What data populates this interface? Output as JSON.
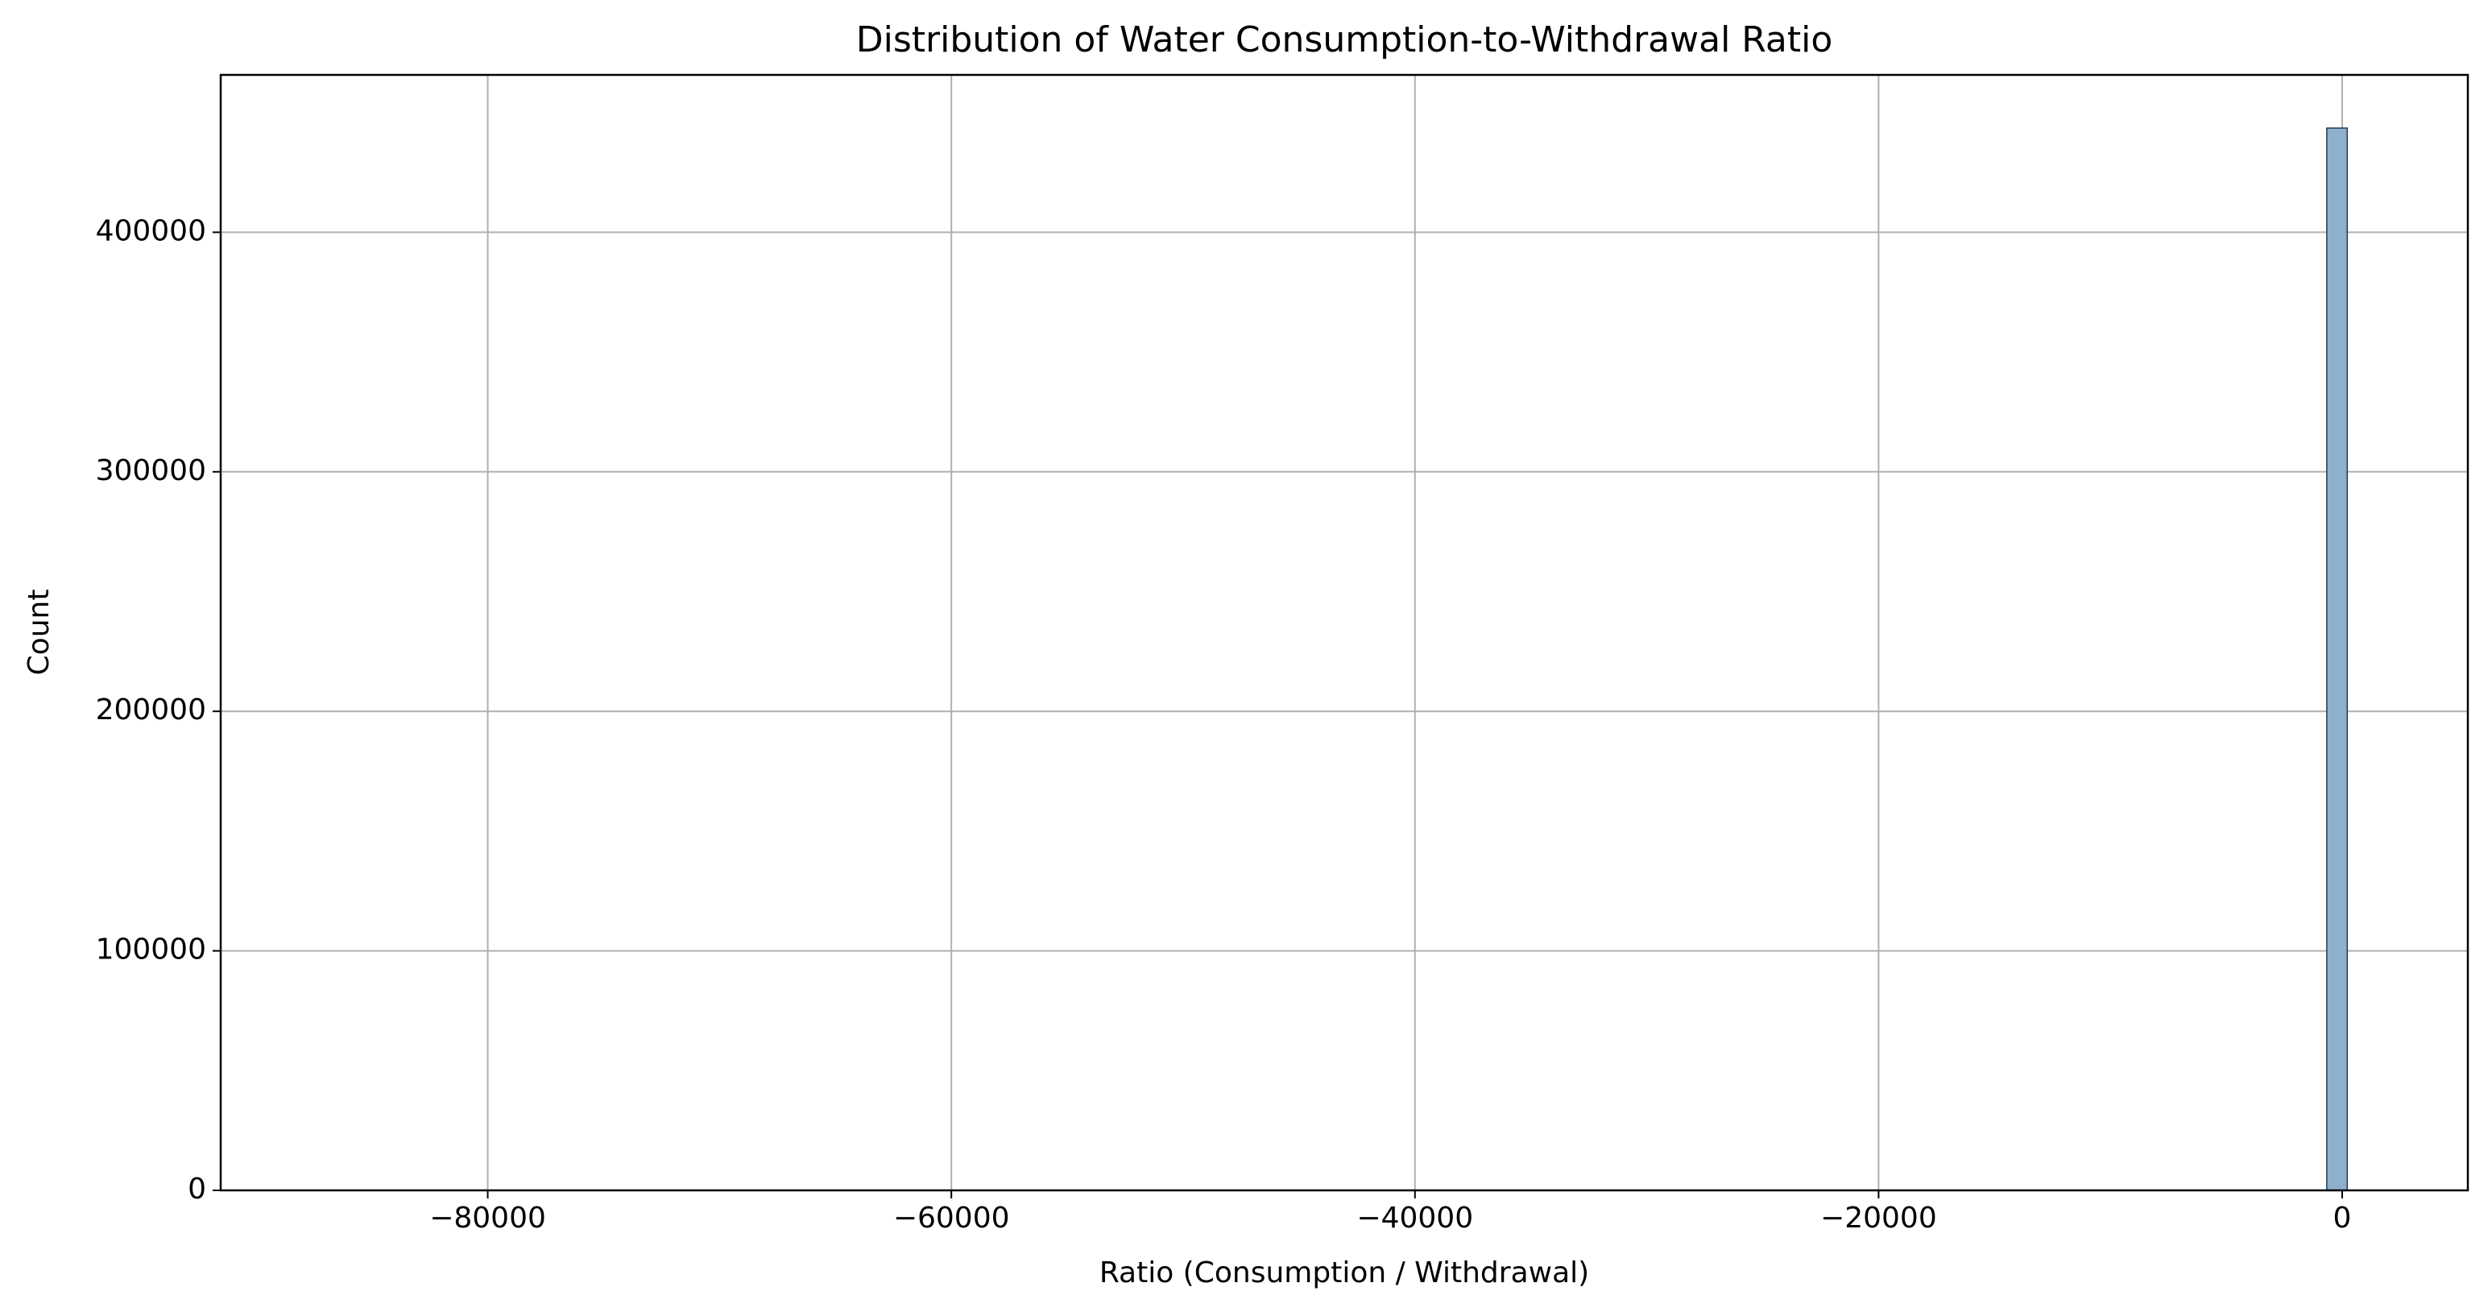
{
  "chart_data": {
    "type": "histogram",
    "title": "Distribution of Water Consumption-to-Withdrawal Ratio",
    "x_label": "Ratio (Consumption / Withdrawal)",
    "y_label": "Count",
    "bins": [
      -87130,
      -86247.7,
      -85365.4,
      -84483.1,
      -83600.8,
      -82718.5,
      -81836.2,
      -80953.9,
      -80071.6,
      -79189.3,
      -78307,
      -77424.7,
      -76542.4,
      -75660.1,
      -74777.8,
      -73895.5,
      -73013.2,
      -72130.9,
      -71248.6,
      -70366.3,
      -69484,
      -68601.7,
      -67719.4,
      -66837.1,
      -65954.8,
      -65072.5,
      -64190.2,
      -63307.9,
      -62425.6,
      -61543.3,
      -60661,
      -59778.7,
      -58896.4,
      -58014.1,
      -57131.8,
      -56249.5,
      -55367.2,
      -54484.9,
      -53602.6,
      -52720.3,
      -51838,
      -50955.7,
      -50073.4,
      -49191.1,
      -48308.8,
      -47426.5,
      -46544.2,
      -45661.9,
      -44779.6,
      -43897.3,
      -43015,
      -42132.7,
      -41250.4,
      -40368.1,
      -39485.8,
      -38603.5,
      -37721.2,
      -36838.9,
      -35956.6,
      -35074.3,
      -34192,
      -33309.7,
      -32427.4,
      -31545.1,
      -30662.8,
      -29780.5,
      -28898.2,
      -28015.9,
      -27133.6,
      -26251.3,
      -25369,
      -24486.7,
      -23604.4,
      -22722.1,
      -21839.8,
      -20957.5,
      -20075.2,
      -19192.9,
      -18310.6,
      -17428.3,
      -16546,
      -15663.7,
      -14781.4,
      -13899.1,
      -13016.8,
      -12134.5,
      -11252.2,
      -10369.9,
      -9487.6,
      -8605.3,
      -7723,
      -6840.7,
      -5958.4,
      -5076.1,
      -4193.8,
      -3311.5,
      -2429.2,
      -1546.9,
      -664.6,
      217.7,
      1100
    ],
    "values": [
      1,
      0,
      0,
      0,
      0,
      0,
      0,
      0,
      0,
      0,
      0,
      0,
      0,
      0,
      0,
      0,
      0,
      0,
      0,
      0,
      0,
      0,
      0,
      0,
      0,
      0,
      0,
      0,
      0,
      0,
      0,
      0,
      0,
      0,
      0,
      0,
      0,
      0,
      0,
      0,
      0,
      0,
      0,
      0,
      0,
      0,
      0,
      0,
      0,
      0,
      0,
      0,
      0,
      0,
      0,
      0,
      0,
      0,
      0,
      0,
      0,
      0,
      0,
      0,
      0,
      0,
      0,
      0,
      0,
      0,
      0,
      0,
      0,
      0,
      0,
      0,
      0,
      0,
      0,
      0,
      0,
      0,
      0,
      0,
      0,
      0,
      0,
      0,
      0,
      0,
      0,
      0,
      0,
      0,
      0,
      0,
      0,
      0,
      443500,
      30
    ],
    "color": "#8fb0cb",
    "edge_color": "#1f3b57",
    "xlim": [
      -91520,
      5420
    ],
    "xticks": [
      {
        "value": -80000,
        "label": "−80000"
      },
      {
        "value": -60000,
        "label": "−60000"
      },
      {
        "value": -40000,
        "label": "−40000"
      },
      {
        "value": -20000,
        "label": "−20000"
      },
      0
    ],
    "ylim": [
      0,
      465700
    ],
    "yticks": [
      0,
      100000,
      200000,
      300000,
      400000
    ],
    "grid": true
  }
}
